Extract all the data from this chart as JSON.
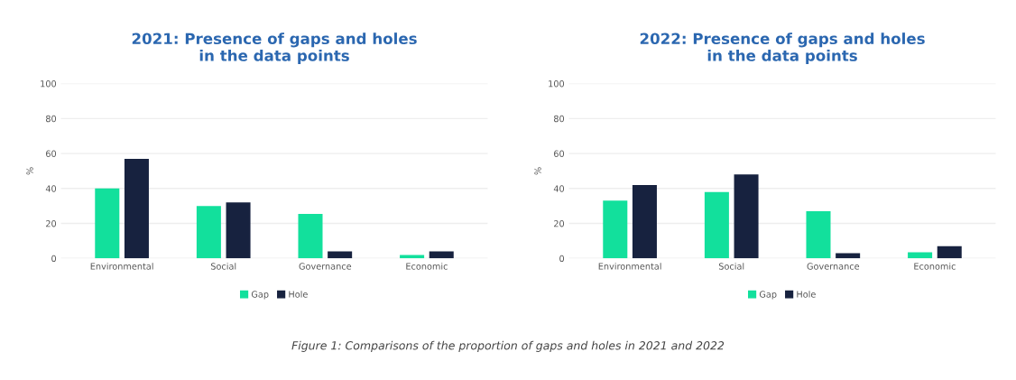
{
  "chart_data": [
    {
      "type": "bar",
      "title": "2021: Presence of gaps and holes\nin the data points",
      "ylabel": "%",
      "categories": [
        "Environmental",
        "Social",
        "Governance",
        "Economic"
      ],
      "series": [
        {
          "name": "Gap",
          "color": "#12e09c",
          "values": [
            40,
            30,
            25.5,
            2
          ]
        },
        {
          "name": "Hole",
          "color": "#17223f",
          "values": [
            57,
            32,
            4,
            4
          ]
        }
      ],
      "ylim": [
        0,
        100
      ],
      "yticks": [
        0,
        20,
        40,
        60,
        80,
        100
      ],
      "grid": "y",
      "legend": "bottom"
    },
    {
      "type": "bar",
      "title": "2022: Presence of gaps and holes\nin the data points",
      "ylabel": "%",
      "categories": [
        "Environmental",
        "Social",
        "Governance",
        "Economic"
      ],
      "series": [
        {
          "name": "Gap",
          "color": "#12e09c",
          "values": [
            33,
            38,
            27,
            3.5
          ]
        },
        {
          "name": "Hole",
          "color": "#17223f",
          "values": [
            42,
            48,
            3,
            7
          ]
        }
      ],
      "ylim": [
        0,
        100
      ],
      "yticks": [
        0,
        20,
        40,
        60,
        80,
        100
      ],
      "grid": "y",
      "legend": "bottom",
      "annotations": [
        "Figure 1: Comparisons of the proportion of gaps and holes in 2021 and 2022"
      ]
    }
  ]
}
